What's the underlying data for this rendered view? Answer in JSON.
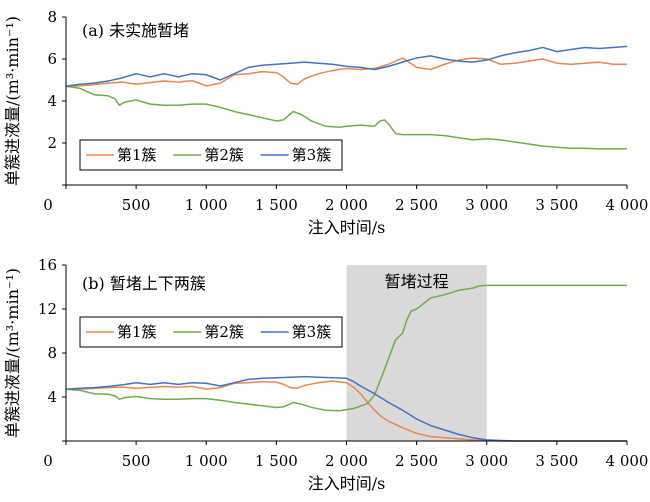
{
  "colors": {
    "series1": "#E8884E",
    "series2": "#70AD47",
    "series3": "#4472C4",
    "shade": "#D9D9D9"
  },
  "chart_data": [
    {
      "type": "line",
      "title": "(a) 未实施暂堵",
      "xlabel": "注入时间/s",
      "ylabel": "单簇进液量/(m³·min⁻¹)",
      "xlim": [
        0,
        4000
      ],
      "ylim": [
        0,
        8
      ],
      "xticks": [
        0,
        500,
        1000,
        1500,
        2000,
        2500,
        3000,
        3500,
        4000
      ],
      "xtick_labels": [
        "0",
        "500",
        "1 000",
        "1 500",
        "2 000",
        "2 500",
        "3 000",
        "3 500",
        "4 000"
      ],
      "yticks": [
        0,
        2,
        4,
        6,
        8
      ],
      "ytick_labels": [
        "0",
        "2",
        "4",
        "6",
        "8"
      ],
      "legend_position": "bottom-left",
      "series": [
        {
          "name": "第1簇",
          "points": [
            [
              0,
              4.7
            ],
            [
              100,
              4.72
            ],
            [
              200,
              4.78
            ],
            [
              300,
              4.85
            ],
            [
              400,
              4.9
            ],
            [
              500,
              4.8
            ],
            [
              600,
              4.88
            ],
            [
              700,
              4.95
            ],
            [
              800,
              4.9
            ],
            [
              900,
              4.97
            ],
            [
              1000,
              4.72
            ],
            [
              1100,
              4.85
            ],
            [
              1200,
              5.25
            ],
            [
              1300,
              5.3
            ],
            [
              1400,
              5.4
            ],
            [
              1500,
              5.35
            ],
            [
              1550,
              5.15
            ],
            [
              1600,
              4.85
            ],
            [
              1650,
              4.8
            ],
            [
              1700,
              5.05
            ],
            [
              1800,
              5.3
            ],
            [
              1900,
              5.45
            ],
            [
              2000,
              5.55
            ],
            [
              2100,
              5.5
            ],
            [
              2200,
              5.55
            ],
            [
              2300,
              5.75
            ],
            [
              2400,
              6.05
            ],
            [
              2500,
              5.6
            ],
            [
              2600,
              5.5
            ],
            [
              2700,
              5.75
            ],
            [
              2800,
              5.95
            ],
            [
              2900,
              6.05
            ],
            [
              3000,
              6.0
            ],
            [
              3100,
              5.75
            ],
            [
              3200,
              5.8
            ],
            [
              3300,
              5.9
            ],
            [
              3400,
              6.0
            ],
            [
              3500,
              5.8
            ],
            [
              3600,
              5.75
            ],
            [
              3700,
              5.8
            ],
            [
              3800,
              5.85
            ],
            [
              3900,
              5.75
            ],
            [
              4000,
              5.75
            ]
          ]
        },
        {
          "name": "第2簇",
          "points": [
            [
              0,
              4.7
            ],
            [
              100,
              4.6
            ],
            [
              200,
              4.3
            ],
            [
              300,
              4.25
            ],
            [
              350,
              4.1
            ],
            [
              380,
              3.8
            ],
            [
              420,
              3.95
            ],
            [
              500,
              4.05
            ],
            [
              600,
              3.85
            ],
            [
              700,
              3.8
            ],
            [
              800,
              3.8
            ],
            [
              900,
              3.85
            ],
            [
              1000,
              3.85
            ],
            [
              1100,
              3.7
            ],
            [
              1200,
              3.5
            ],
            [
              1300,
              3.35
            ],
            [
              1400,
              3.2
            ],
            [
              1500,
              3.05
            ],
            [
              1550,
              3.1
            ],
            [
              1620,
              3.5
            ],
            [
              1680,
              3.35
            ],
            [
              1750,
              3.05
            ],
            [
              1850,
              2.8
            ],
            [
              1950,
              2.75
            ],
            [
              2000,
              2.8
            ],
            [
              2100,
              2.85
            ],
            [
              2200,
              2.8
            ],
            [
              2240,
              3.05
            ],
            [
              2270,
              3.1
            ],
            [
              2300,
              2.9
            ],
            [
              2350,
              2.45
            ],
            [
              2400,
              2.4
            ],
            [
              2500,
              2.4
            ],
            [
              2600,
              2.4
            ],
            [
              2700,
              2.35
            ],
            [
              2800,
              2.25
            ],
            [
              2900,
              2.15
            ],
            [
              3000,
              2.2
            ],
            [
              3100,
              2.15
            ],
            [
              3200,
              2.05
            ],
            [
              3300,
              1.95
            ],
            [
              3400,
              1.85
            ],
            [
              3500,
              1.8
            ],
            [
              3600,
              1.75
            ],
            [
              3700,
              1.75
            ],
            [
              3800,
              1.72
            ],
            [
              3900,
              1.72
            ],
            [
              4000,
              1.72
            ]
          ]
        },
        {
          "name": "第3簇",
          "points": [
            [
              0,
              4.7
            ],
            [
              100,
              4.8
            ],
            [
              200,
              4.85
            ],
            [
              300,
              4.95
            ],
            [
              400,
              5.1
            ],
            [
              500,
              5.3
            ],
            [
              600,
              5.15
            ],
            [
              700,
              5.3
            ],
            [
              800,
              5.15
            ],
            [
              900,
              5.3
            ],
            [
              1000,
              5.25
            ],
            [
              1100,
              5.0
            ],
            [
              1200,
              5.3
            ],
            [
              1300,
              5.6
            ],
            [
              1400,
              5.7
            ],
            [
              1500,
              5.75
            ],
            [
              1600,
              5.8
            ],
            [
              1700,
              5.85
            ],
            [
              1800,
              5.8
            ],
            [
              1900,
              5.75
            ],
            [
              2000,
              5.65
            ],
            [
              2100,
              5.6
            ],
            [
              2200,
              5.5
            ],
            [
              2300,
              5.65
            ],
            [
              2400,
              5.85
            ],
            [
              2500,
              6.05
            ],
            [
              2600,
              6.15
            ],
            [
              2700,
              6.0
            ],
            [
              2800,
              5.9
            ],
            [
              2900,
              5.85
            ],
            [
              3000,
              5.95
            ],
            [
              3100,
              6.15
            ],
            [
              3200,
              6.3
            ],
            [
              3300,
              6.4
            ],
            [
              3400,
              6.55
            ],
            [
              3500,
              6.35
            ],
            [
              3600,
              6.45
            ],
            [
              3700,
              6.55
            ],
            [
              3800,
              6.5
            ],
            [
              3900,
              6.55
            ],
            [
              4000,
              6.6
            ]
          ]
        }
      ]
    },
    {
      "type": "line",
      "title": "(b) 暂堵上下两簇",
      "xlabel": "注入时间/s",
      "ylabel": "单簇进液量/(m³·min⁻¹)",
      "xlim": [
        0,
        4000
      ],
      "ylim": [
        0,
        16
      ],
      "xticks": [
        0,
        500,
        1000,
        1500,
        2000,
        2500,
        3000,
        3500,
        4000
      ],
      "xtick_labels": [
        "0",
        "500",
        "1 000",
        "1 500",
        "2 000",
        "2 500",
        "3 000",
        "3 500",
        "4 000"
      ],
      "yticks": [
        0,
        4,
        8,
        12,
        16
      ],
      "ytick_labels": [
        "0",
        "4",
        "8",
        "12",
        "16"
      ],
      "legend_position": "middle-left",
      "shaded_region": {
        "x": [
          2000,
          3000
        ],
        "label": "暂堵过程"
      },
      "series": [
        {
          "name": "第1簇",
          "points": [
            [
              0,
              4.7
            ],
            [
              100,
              4.72
            ],
            [
              200,
              4.78
            ],
            [
              300,
              4.85
            ],
            [
              400,
              4.9
            ],
            [
              500,
              4.8
            ],
            [
              600,
              4.88
            ],
            [
              700,
              4.95
            ],
            [
              800,
              4.9
            ],
            [
              900,
              4.97
            ],
            [
              1000,
              4.72
            ],
            [
              1100,
              4.85
            ],
            [
              1200,
              5.25
            ],
            [
              1300,
              5.3
            ],
            [
              1400,
              5.4
            ],
            [
              1500,
              5.35
            ],
            [
              1550,
              5.15
            ],
            [
              1600,
              4.85
            ],
            [
              1650,
              4.8
            ],
            [
              1700,
              5.05
            ],
            [
              1800,
              5.3
            ],
            [
              1900,
              5.45
            ],
            [
              2000,
              5.3
            ],
            [
              2050,
              4.9
            ],
            [
              2100,
              4.3
            ],
            [
              2150,
              3.5
            ],
            [
              2200,
              2.8
            ],
            [
              2250,
              2.2
            ],
            [
              2300,
              1.8
            ],
            [
              2400,
              1.2
            ],
            [
              2500,
              0.7
            ],
            [
              2600,
              0.4
            ],
            [
              2700,
              0.3
            ],
            [
              2800,
              0.2
            ],
            [
              2900,
              0.1
            ],
            [
              3000,
              0.05
            ],
            [
              3100,
              0.0
            ],
            [
              3500,
              0.0
            ],
            [
              4000,
              0.0
            ]
          ]
        },
        {
          "name": "第2簇",
          "points": [
            [
              0,
              4.7
            ],
            [
              100,
              4.6
            ],
            [
              200,
              4.3
            ],
            [
              300,
              4.25
            ],
            [
              350,
              4.1
            ],
            [
              380,
              3.8
            ],
            [
              420,
              3.95
            ],
            [
              500,
              4.05
            ],
            [
              600,
              3.85
            ],
            [
              700,
              3.8
            ],
            [
              800,
              3.8
            ],
            [
              900,
              3.85
            ],
            [
              1000,
              3.85
            ],
            [
              1100,
              3.7
            ],
            [
              1200,
              3.5
            ],
            [
              1300,
              3.35
            ],
            [
              1400,
              3.2
            ],
            [
              1500,
              3.05
            ],
            [
              1550,
              3.1
            ],
            [
              1620,
              3.5
            ],
            [
              1680,
              3.35
            ],
            [
              1750,
              3.05
            ],
            [
              1850,
              2.8
            ],
            [
              1950,
              2.75
            ],
            [
              2050,
              2.95
            ],
            [
              2150,
              3.4
            ],
            [
              2200,
              4.2
            ],
            [
              2250,
              5.8
            ],
            [
              2300,
              7.5
            ],
            [
              2350,
              9.2
            ],
            [
              2400,
              9.8
            ],
            [
              2430,
              11.0
            ],
            [
              2460,
              11.8
            ],
            [
              2500,
              12.0
            ],
            [
              2550,
              12.5
            ],
            [
              2600,
              13.0
            ],
            [
              2700,
              13.3
            ],
            [
              2800,
              13.7
            ],
            [
              2900,
              13.9
            ],
            [
              2950,
              14.1
            ],
            [
              3000,
              14.15
            ],
            [
              3200,
              14.15
            ],
            [
              3500,
              14.15
            ],
            [
              4000,
              14.15
            ]
          ]
        },
        {
          "name": "第3簇",
          "points": [
            [
              0,
              4.7
            ],
            [
              100,
              4.8
            ],
            [
              200,
              4.85
            ],
            [
              300,
              4.95
            ],
            [
              400,
              5.1
            ],
            [
              500,
              5.3
            ],
            [
              600,
              5.15
            ],
            [
              700,
              5.3
            ],
            [
              800,
              5.15
            ],
            [
              900,
              5.3
            ],
            [
              1000,
              5.25
            ],
            [
              1100,
              5.0
            ],
            [
              1200,
              5.3
            ],
            [
              1300,
              5.6
            ],
            [
              1400,
              5.7
            ],
            [
              1500,
              5.75
            ],
            [
              1600,
              5.8
            ],
            [
              1700,
              5.85
            ],
            [
              1800,
              5.8
            ],
            [
              1900,
              5.75
            ],
            [
              2000,
              5.7
            ],
            [
              2050,
              5.4
            ],
            [
              2100,
              5.0
            ],
            [
              2200,
              4.3
            ],
            [
              2300,
              3.5
            ],
            [
              2400,
              2.8
            ],
            [
              2500,
              2.0
            ],
            [
              2600,
              1.4
            ],
            [
              2700,
              1.0
            ],
            [
              2800,
              0.6
            ],
            [
              2900,
              0.3
            ],
            [
              3000,
              0.1
            ],
            [
              3100,
              0.05
            ],
            [
              3200,
              0.0
            ],
            [
              4000,
              0.0
            ]
          ]
        }
      ]
    }
  ]
}
